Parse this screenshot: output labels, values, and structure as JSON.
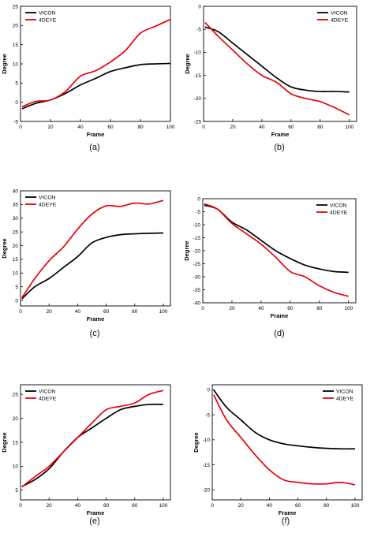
{
  "chart_data": [
    {
      "id": "a",
      "type": "line",
      "caption": "(a)",
      "xlabel": "Frame",
      "ylabel": "Degree",
      "xlim": [
        0,
        100
      ],
      "ylim": [
        -5,
        25
      ],
      "xticks": [
        0,
        20,
        40,
        60,
        80,
        100
      ],
      "yticks": [
        -5,
        0,
        5,
        10,
        15,
        20,
        25
      ],
      "legend": "top-left",
      "series": [
        {
          "name": "VICON",
          "color": "#000000",
          "x": [
            1,
            10,
            20,
            30,
            40,
            50,
            60,
            70,
            80,
            90,
            100
          ],
          "y": [
            -1.7,
            -0.3,
            0.6,
            2.3,
            4.5,
            6.2,
            8.0,
            9.0,
            9.8,
            10.0,
            10.1
          ]
        },
        {
          "name": "4DEYE",
          "color": "#e8000b",
          "x": [
            1,
            10,
            20,
            30,
            40,
            50,
            60,
            70,
            80,
            90,
            100
          ],
          "y": [
            -1.2,
            0.2,
            0.6,
            2.8,
            6.8,
            8.2,
            10.5,
            13.5,
            18.0,
            19.8,
            21.6
          ]
        }
      ]
    },
    {
      "id": "b",
      "type": "line",
      "caption": "(b)",
      "xlabel": "Frame",
      "ylabel": "Degree",
      "xlim": [
        0,
        105
      ],
      "ylim": [
        -25,
        0
      ],
      "xticks": [
        0,
        20,
        40,
        60,
        80,
        100
      ],
      "yticks": [
        0,
        -5,
        -10,
        -15,
        -20,
        -25
      ],
      "legend": "top-right",
      "series": [
        {
          "name": "VICON",
          "color": "#000000",
          "x": [
            1,
            10,
            20,
            30,
            40,
            50,
            60,
            70,
            80,
            90,
            100
          ],
          "y": [
            -4.5,
            -5.5,
            -8.0,
            -10.5,
            -13.0,
            -15.5,
            -17.5,
            -18.2,
            -18.5,
            -18.5,
            -18.6
          ]
        },
        {
          "name": "4DEYE",
          "color": "#e8000b",
          "x": [
            1,
            10,
            20,
            30,
            40,
            50,
            60,
            70,
            80,
            90,
            100
          ],
          "y": [
            -3.5,
            -6.5,
            -9.5,
            -12.5,
            -15.0,
            -16.5,
            -19.0,
            -20.0,
            -20.7,
            -22.0,
            -23.6
          ]
        }
      ]
    },
    {
      "id": "c",
      "type": "line",
      "caption": "(c)",
      "xlabel": "Frame",
      "ylabel": "Degree",
      "xlim": [
        0,
        105
      ],
      "ylim": [
        -2,
        40
      ],
      "xticks": [
        0,
        20,
        40,
        60,
        80,
        100
      ],
      "yticks": [
        0,
        5,
        10,
        15,
        20,
        25,
        30,
        35,
        40
      ],
      "legend": "top-left",
      "series": [
        {
          "name": "VICON",
          "color": "#000000",
          "x": [
            1,
            10,
            20,
            30,
            40,
            50,
            60,
            70,
            80,
            90,
            100
          ],
          "y": [
            0.6,
            5.0,
            8.0,
            12.0,
            16.0,
            21.0,
            23.0,
            24.0,
            24.3,
            24.5,
            24.6
          ]
        },
        {
          "name": "4DEYE",
          "color": "#e8000b",
          "x": [
            1,
            10,
            20,
            30,
            40,
            50,
            60,
            70,
            80,
            90,
            100
          ],
          "y": [
            1.0,
            8.0,
            14.5,
            19.5,
            26.0,
            31.5,
            34.5,
            34.3,
            35.5,
            35.2,
            36.5
          ]
        }
      ]
    },
    {
      "id": "d",
      "type": "line",
      "caption": "(d)",
      "xlabel": "Frame",
      "ylabel": "Degree",
      "xlim": [
        0,
        105
      ],
      "ylim": [
        -40,
        0
      ],
      "xticks": [
        0,
        20,
        40,
        60,
        80,
        100
      ],
      "yticks": [
        0,
        -5,
        -10,
        -15,
        -20,
        -25,
        -30,
        -35,
        -40
      ],
      "legend": "top-right",
      "series": [
        {
          "name": "VICON",
          "color": "#000000",
          "x": [
            1,
            10,
            20,
            30,
            40,
            50,
            60,
            70,
            80,
            90,
            100
          ],
          "y": [
            -2.5,
            -4.0,
            -9.0,
            -12.0,
            -16.0,
            -20.0,
            -23.0,
            -25.5,
            -27.0,
            -28.0,
            -28.3
          ]
        },
        {
          "name": "4DEYE",
          "color": "#e8000b",
          "x": [
            1,
            10,
            20,
            30,
            40,
            50,
            60,
            70,
            80,
            90,
            100
          ],
          "y": [
            -2.0,
            -4.0,
            -9.5,
            -13.5,
            -17.5,
            -22.5,
            -28.0,
            -30.0,
            -33.5,
            -36.0,
            -37.5
          ]
        }
      ]
    },
    {
      "id": "e",
      "type": "line",
      "caption": "(e)",
      "xlabel": "Frame",
      "ylabel": "Degree",
      "xlim": [
        0,
        105
      ],
      "ylim": [
        3,
        27
      ],
      "xticks": [
        0,
        20,
        40,
        60,
        80,
        100
      ],
      "yticks": [
        5,
        10,
        15,
        20,
        25
      ],
      "legend": "top-left",
      "series": [
        {
          "name": "VICON",
          "color": "#000000",
          "x": [
            1,
            10,
            20,
            30,
            40,
            50,
            60,
            70,
            80,
            90,
            100
          ],
          "y": [
            5.8,
            7.2,
            9.5,
            13.0,
            16.0,
            18.0,
            20.0,
            21.8,
            22.5,
            22.9,
            22.9
          ]
        },
        {
          "name": "4DEYE",
          "color": "#e8000b",
          "x": [
            1,
            10,
            20,
            30,
            40,
            50,
            60,
            70,
            80,
            90,
            100
          ],
          "y": [
            5.7,
            7.8,
            10.0,
            13.0,
            16.0,
            19.0,
            21.8,
            22.5,
            23.2,
            25.0,
            25.8
          ]
        }
      ]
    },
    {
      "id": "f",
      "type": "line",
      "caption": "(f)",
      "xlabel": "Frame",
      "ylabel": "Degree",
      "xlim": [
        0,
        105
      ],
      "ylim": [
        -22,
        1
      ],
      "xticks": [
        0,
        20,
        40,
        60,
        80,
        100
      ],
      "yticks": [
        0,
        -5,
        -10,
        -15,
        -20
      ],
      "legend": "top-right",
      "series": [
        {
          "name": "VICON",
          "color": "#000000",
          "x": [
            1,
            10,
            20,
            30,
            40,
            50,
            60,
            70,
            80,
            90,
            100
          ],
          "y": [
            0.0,
            -3.5,
            -6.0,
            -8.5,
            -10.0,
            -10.8,
            -11.2,
            -11.5,
            -11.7,
            -11.8,
            -11.8
          ]
        },
        {
          "name": "4DEYE",
          "color": "#e8000b",
          "x": [
            1,
            10,
            20,
            30,
            40,
            50,
            60,
            70,
            80,
            90,
            100
          ],
          "y": [
            -1.0,
            -6.0,
            -9.5,
            -13.0,
            -16.0,
            -18.0,
            -18.5,
            -18.8,
            -18.8,
            -18.5,
            -19.0
          ]
        }
      ]
    }
  ]
}
